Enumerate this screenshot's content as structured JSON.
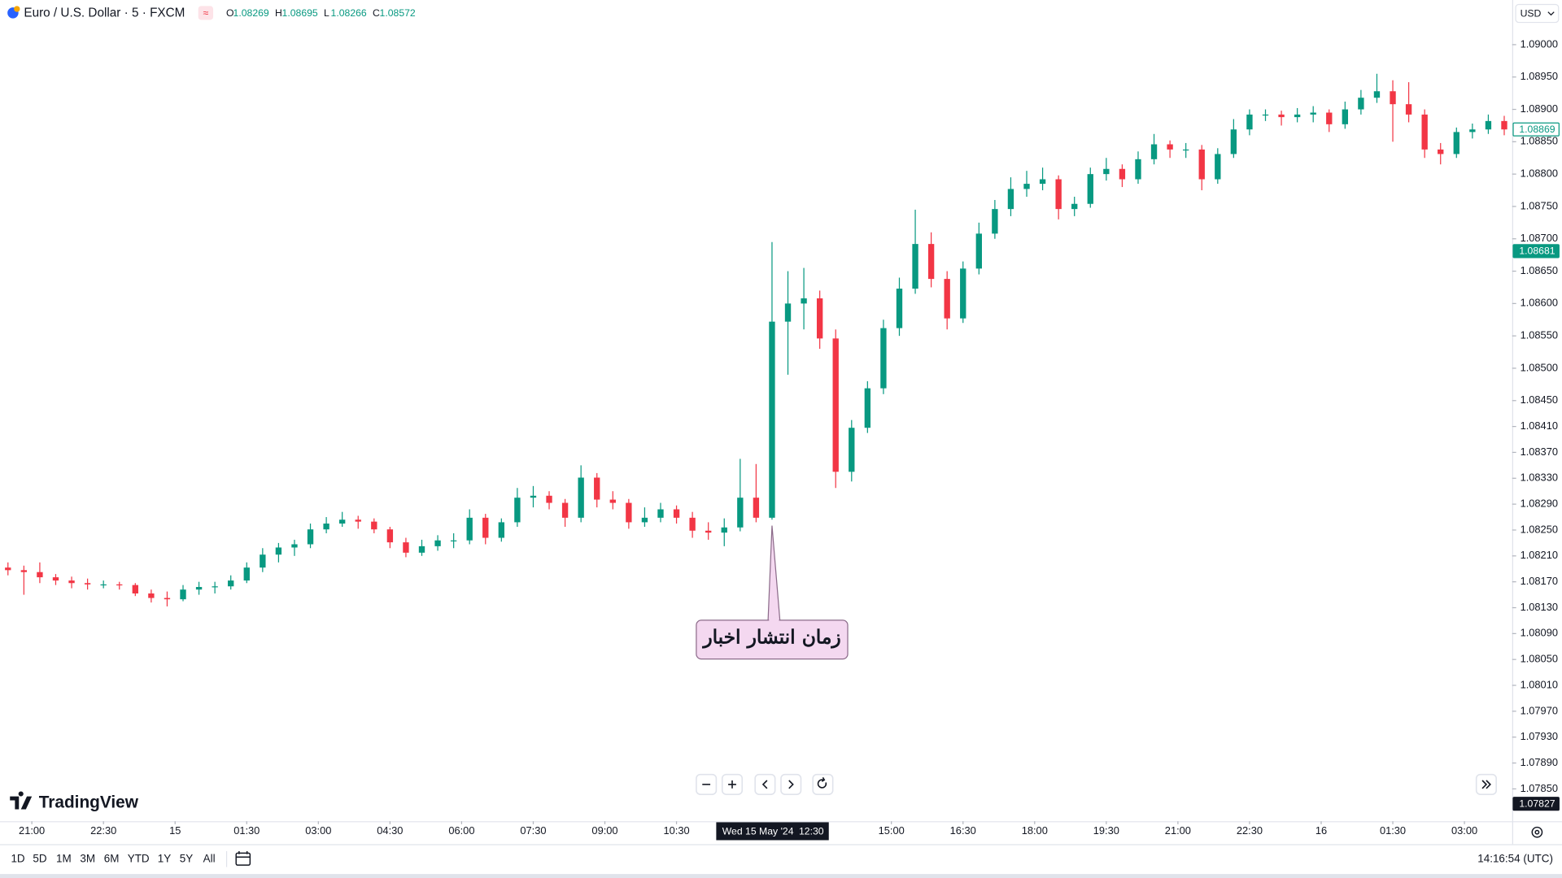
{
  "chart_data": {
    "type": "candlestick",
    "title": "Euro / U.S. Dollar · 5 · FXCM",
    "legend": [
      {
        "label": "O",
        "value": 1.08269
      },
      {
        "label": "H",
        "value": 1.08695
      },
      {
        "label": "L",
        "value": 1.08266
      },
      {
        "label": "C",
        "value": 1.08572
      }
    ],
    "legend_color": "#089981",
    "currency": "USD",
    "up_color": "#089981",
    "down_color": "#f23645",
    "open": [
      1.08192,
      1.08188,
      1.08185,
      1.08177,
      1.08172,
      1.08168,
      1.08166,
      1.08166,
      1.08165,
      1.08152,
      1.08145,
      1.08143,
      1.08158,
      1.08162,
      1.08163,
      1.08172,
      1.08192,
      1.08212,
      1.08223,
      1.08228,
      1.08251,
      1.0826,
      1.08266,
      1.08263,
      1.08251,
      1.08231,
      1.08215,
      1.08225,
      1.08234,
      1.08234,
      1.08269,
      1.08238,
      1.08262,
      1.083,
      1.08303,
      1.08292,
      1.08269,
      1.08331,
      1.08297,
      1.08292,
      1.08262,
      1.08269,
      1.08282,
      1.08269,
      1.08249,
      1.08246,
      1.08254,
      1.083,
      1.08269,
      1.08572,
      1.086,
      1.08608,
      1.08546,
      1.0834,
      1.08408,
      1.08469,
      1.08562,
      1.08623,
      1.08692,
      1.08638,
      1.08577,
      1.08654,
      1.08708,
      1.08746,
      1.08777,
      1.08785,
      1.08792,
      1.08746,
      1.08754,
      1.088,
      1.08808,
      1.08792,
      1.08823,
      1.08846,
      1.08838,
      1.08838,
      1.08792,
      1.08831,
      1.08869,
      1.08892,
      1.08892,
      1.08888,
      1.08892,
      1.08895,
      1.08877,
      1.089,
      1.08918,
      1.08928,
      1.08908,
      1.08892,
      1.08838,
      1.08831,
      1.08865,
      1.08869,
      1.08882
    ],
    "high": [
      1.082,
      1.08195,
      1.082,
      1.08182,
      1.08178,
      1.08175,
      1.08172,
      1.0817,
      1.08168,
      1.08158,
      1.08155,
      1.08165,
      1.0817,
      1.0817,
      1.0818,
      1.082,
      1.08222,
      1.0823,
      1.08235,
      1.0826,
      1.0827,
      1.08278,
      1.08272,
      1.08268,
      1.08255,
      1.08238,
      1.08235,
      1.08242,
      1.08245,
      1.08282,
      1.08275,
      1.08268,
      1.08315,
      1.08318,
      1.0831,
      1.08298,
      1.0835,
      1.08338,
      1.0831,
      1.08298,
      1.08285,
      1.08292,
      1.08288,
      1.08278,
      1.08262,
      1.08268,
      1.0836,
      1.08352,
      1.08695,
      1.0865,
      1.08655,
      1.0862,
      1.0856,
      1.0842,
      1.0848,
      1.08575,
      1.0864,
      1.08745,
      1.0871,
      1.0865,
      1.08665,
      1.08725,
      1.0876,
      1.08795,
      1.08805,
      1.0881,
      1.08798,
      1.08765,
      1.0881,
      1.08825,
      1.08815,
      1.08835,
      1.08862,
      1.08852,
      1.08848,
      1.08845,
      1.0884,
      1.08885,
      1.089,
      1.089,
      1.08898,
      1.08902,
      1.08905,
      1.089,
      1.08912,
      1.0893,
      1.08955,
      1.08945,
      1.08942,
      1.089,
      1.08848,
      1.08872,
      1.08878,
      1.08892,
      1.0889
    ],
    "low": [
      1.0818,
      1.0815,
      1.08168,
      1.08165,
      1.0816,
      1.08158,
      1.0816,
      1.08158,
      1.08148,
      1.08138,
      1.08132,
      1.0814,
      1.0815,
      1.08152,
      1.08158,
      1.08168,
      1.08185,
      1.082,
      1.0821,
      1.08222,
      1.08245,
      1.08255,
      1.08252,
      1.08245,
      1.08222,
      1.08208,
      1.0821,
      1.08218,
      1.08222,
      1.08228,
      1.08228,
      1.08232,
      1.08255,
      1.08285,
      1.08282,
      1.08255,
      1.08262,
      1.08285,
      1.08282,
      1.08252,
      1.08255,
      1.08262,
      1.0826,
      1.08238,
      1.08235,
      1.08225,
      1.08248,
      1.08262,
      1.08266,
      1.0849,
      1.0856,
      1.0853,
      1.08315,
      1.08325,
      1.084,
      1.0846,
      1.0855,
      1.08615,
      1.08625,
      1.0856,
      1.0857,
      1.08645,
      1.087,
      1.08735,
      1.08765,
      1.08775,
      1.0873,
      1.08735,
      1.08748,
      1.0879,
      1.0878,
      1.08785,
      1.08815,
      1.08825,
      1.08825,
      1.08775,
      1.08785,
      1.08825,
      1.0886,
      1.08882,
      1.08875,
      1.0888,
      1.0888,
      1.08865,
      1.0887,
      1.08892,
      1.0891,
      1.0885,
      1.0888,
      1.08825,
      1.08815,
      1.08825,
      1.08855,
      1.08862,
      1.0886
    ],
    "close": [
      1.08188,
      1.08185,
      1.08177,
      1.08172,
      1.08168,
      1.08166,
      1.08166,
      1.08165,
      1.08152,
      1.08145,
      1.08143,
      1.08158,
      1.08162,
      1.08163,
      1.08172,
      1.08192,
      1.08212,
      1.08223,
      1.08228,
      1.08251,
      1.0826,
      1.08266,
      1.08263,
      1.08251,
      1.08231,
      1.08215,
      1.08225,
      1.08234,
      1.08234,
      1.08269,
      1.08238,
      1.08262,
      1.083,
      1.08303,
      1.08292,
      1.08269,
      1.08331,
      1.08297,
      1.08292,
      1.08262,
      1.08269,
      1.08282,
      1.08269,
      1.08249,
      1.08246,
      1.08254,
      1.083,
      1.08269,
      1.08572,
      1.086,
      1.08608,
      1.08546,
      1.0834,
      1.08408,
      1.08469,
      1.08562,
      1.08623,
      1.08692,
      1.08638,
      1.08577,
      1.08654,
      1.08708,
      1.08746,
      1.08777,
      1.08785,
      1.08792,
      1.08746,
      1.08754,
      1.088,
      1.08808,
      1.08792,
      1.08823,
      1.08846,
      1.08838,
      1.08838,
      1.08792,
      1.08831,
      1.08869,
      1.08892,
      1.08892,
      1.08888,
      1.08892,
      1.08895,
      1.08877,
      1.089,
      1.08918,
      1.08928,
      1.08908,
      1.08892,
      1.08838,
      1.08831,
      1.08865,
      1.08869,
      1.08882,
      1.08869
    ],
    "xlim": [
      -0.5,
      94.5
    ],
    "xticks": [
      {
        "value": 1.5,
        "label": "21:00"
      },
      {
        "value": 6,
        "label": "22:30"
      },
      {
        "value": 10.5,
        "label": "15"
      },
      {
        "value": 15,
        "label": "01:30"
      },
      {
        "value": 19.5,
        "label": "03:00"
      },
      {
        "value": 24,
        "label": "04:30"
      },
      {
        "value": 28.5,
        "label": "06:00"
      },
      {
        "value": 33,
        "label": "07:30"
      },
      {
        "value": 37.5,
        "label": "09:00"
      },
      {
        "value": 42,
        "label": "10:30"
      },
      {
        "value": 55.5,
        "label": "15:00"
      },
      {
        "value": 60,
        "label": "16:30"
      },
      {
        "value": 64.5,
        "label": "18:00"
      },
      {
        "value": 69,
        "label": "19:30"
      },
      {
        "value": 73.5,
        "label": "21:00"
      },
      {
        "value": 78,
        "label": "22:30"
      },
      {
        "value": 82.5,
        "label": "16"
      },
      {
        "value": 87,
        "label": "01:30"
      },
      {
        "value": 91.5,
        "label": "03:00"
      }
    ],
    "ylim": [
      1.078,
      1.09069
    ],
    "yticks": [
      {
        "value": 1.09,
        "label": "1.09000"
      },
      {
        "value": 1.0895,
        "label": "1.08950"
      },
      {
        "value": 1.089,
        "label": "1.08900"
      },
      {
        "value": 1.0885,
        "label": "1.08850"
      },
      {
        "value": 1.088,
        "label": "1.08800"
      },
      {
        "value": 1.0875,
        "label": "1.08750"
      },
      {
        "value": 1.087,
        "label": "1.08700"
      },
      {
        "value": 1.0865,
        "label": "1.08650"
      },
      {
        "value": 1.086,
        "label": "1.08600"
      },
      {
        "value": 1.0855,
        "label": "1.08550"
      },
      {
        "value": 1.085,
        "label": "1.08500"
      },
      {
        "value": 1.0845,
        "label": "1.08450"
      },
      {
        "value": 1.0841,
        "label": "1.08410"
      },
      {
        "value": 1.0837,
        "label": "1.08370"
      },
      {
        "value": 1.0833,
        "label": "1.08330"
      },
      {
        "value": 1.0829,
        "label": "1.08290"
      },
      {
        "value": 1.0825,
        "label": "1.08250"
      },
      {
        "value": 1.0821,
        "label": "1.08210"
      },
      {
        "value": 1.0817,
        "label": "1.08170"
      },
      {
        "value": 1.0813,
        "label": "1.08130"
      },
      {
        "value": 1.0809,
        "label": "1.08090"
      },
      {
        "value": 1.0805,
        "label": "1.08050"
      },
      {
        "value": 1.0801,
        "label": "1.08010"
      },
      {
        "value": 1.0797,
        "label": "1.07970"
      },
      {
        "value": 1.0793,
        "label": "1.07930"
      },
      {
        "value": 1.0789,
        "label": "1.07890"
      },
      {
        "value": 1.0785,
        "label": "1.07850"
      }
    ],
    "grid": false,
    "price_markers": [
      {
        "value": 1.08869,
        "color": "#089981",
        "filled": false
      },
      {
        "value": 1.08681,
        "color": "#089981",
        "filled": true
      },
      {
        "value": 1.07827,
        "color": "#131722",
        "filled": true
      }
    ],
    "crosshair": {
      "date": "Wed 15 May '24",
      "time": "12:30",
      "index": 48
    },
    "annotations": [
      {
        "text": "زمان انتشار اخبار",
        "index": 48
      }
    ]
  },
  "toolbar": {
    "ranges": [
      "1D",
      "5D",
      "1M",
      "3M",
      "6M",
      "YTD",
      "1Y",
      "5Y",
      "All"
    ],
    "clock": "14:16:54 (UTC)"
  },
  "branding": "TradingView"
}
